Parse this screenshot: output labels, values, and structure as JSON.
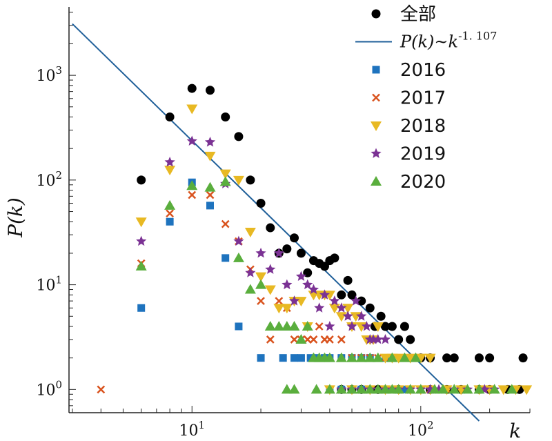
{
  "chart_data": {
    "type": "scatter",
    "xlabel": "k",
    "ylabel": "P(k)",
    "xscale": "log",
    "yscale": "log",
    "xlim": [
      2.9,
      300
    ],
    "ylim": [
      0.6,
      4500
    ],
    "grid": false,
    "legend_position": "top-right",
    "x_tick_labels": [
      {
        "value": 10,
        "base": "10",
        "exp": "1"
      },
      {
        "value": 100,
        "base": "10",
        "exp": "2"
      }
    ],
    "y_tick_labels": [
      {
        "value": 1,
        "base": "10",
        "exp": "0"
      },
      {
        "value": 10,
        "base": "10",
        "exp": "1"
      },
      {
        "value": 100,
        "base": "10",
        "exp": "2"
      },
      {
        "value": 1000,
        "base": "10",
        "exp": "3"
      }
    ],
    "fit_line": {
      "label_prefix": "P(k)~k",
      "label_exponent": "-1. 107",
      "color": "#1f5f99",
      "x": [
        3,
        180
      ],
      "y": [
        3100,
        0.5
      ]
    },
    "series": [
      {
        "name": "全部",
        "marker": "circle",
        "color": "#000000",
        "points": [
          [
            6,
            100
          ],
          [
            8,
            400
          ],
          [
            10,
            750
          ],
          [
            12,
            720
          ],
          [
            14,
            400
          ],
          [
            16,
            260
          ],
          [
            18,
            100
          ],
          [
            20,
            60
          ],
          [
            22,
            35
          ],
          [
            24,
            20
          ],
          [
            26,
            22
          ],
          [
            28,
            28
          ],
          [
            30,
            20
          ],
          [
            32,
            13
          ],
          [
            34,
            17
          ],
          [
            36,
            16
          ],
          [
            38,
            15
          ],
          [
            40,
            17
          ],
          [
            42,
            18
          ],
          [
            45,
            8
          ],
          [
            48,
            11
          ],
          [
            50,
            8
          ],
          [
            55,
            7
          ],
          [
            60,
            6
          ],
          [
            63,
            4
          ],
          [
            67,
            5
          ],
          [
            70,
            4
          ],
          [
            75,
            4
          ],
          [
            80,
            3
          ],
          [
            85,
            4
          ],
          [
            90,
            3
          ],
          [
            100,
            2
          ],
          [
            110,
            2
          ],
          [
            130,
            2
          ],
          [
            140,
            2
          ],
          [
            180,
            2
          ],
          [
            200,
            2
          ],
          [
            280,
            2
          ],
          [
            45,
            1
          ],
          [
            50,
            1
          ],
          [
            55,
            1
          ],
          [
            65,
            1
          ],
          [
            80,
            1
          ],
          [
            110,
            1
          ],
          [
            130,
            1
          ],
          [
            150,
            1
          ],
          [
            180,
            1
          ],
          [
            200,
            1
          ],
          [
            240,
            1
          ],
          [
            270,
            1
          ]
        ]
      },
      {
        "name": "2016",
        "marker": "square",
        "color": "#1e73be",
        "points": [
          [
            6,
            6
          ],
          [
            8,
            40
          ],
          [
            10,
            95
          ],
          [
            12,
            57
          ],
          [
            14,
            18
          ],
          [
            16,
            4
          ],
          [
            20,
            2
          ],
          [
            25,
            2
          ],
          [
            28,
            2
          ],
          [
            30,
            2
          ],
          [
            33,
            2
          ],
          [
            35,
            2
          ],
          [
            38,
            2
          ],
          [
            40,
            2
          ],
          [
            45,
            2
          ],
          [
            50,
            2
          ],
          [
            55,
            2
          ],
          [
            60,
            2
          ],
          [
            70,
            2
          ],
          [
            40,
            1
          ],
          [
            45,
            1
          ],
          [
            55,
            1
          ],
          [
            70,
            1
          ],
          [
            85,
            1
          ]
        ]
      },
      {
        "name": "2017",
        "marker": "x",
        "color": "#d9531e",
        "points": [
          [
            4,
            1
          ],
          [
            6,
            16
          ],
          [
            8,
            48
          ],
          [
            10,
            72
          ],
          [
            12,
            72
          ],
          [
            14,
            38
          ],
          [
            16,
            26
          ],
          [
            18,
            14
          ],
          [
            20,
            7
          ],
          [
            22,
            3
          ],
          [
            24,
            7
          ],
          [
            26,
            6
          ],
          [
            28,
            3
          ],
          [
            30,
            3
          ],
          [
            32,
            3
          ],
          [
            34,
            3
          ],
          [
            36,
            4
          ],
          [
            38,
            3
          ],
          [
            40,
            3
          ],
          [
            45,
            3
          ],
          [
            50,
            2
          ],
          [
            55,
            2
          ],
          [
            60,
            2
          ],
          [
            65,
            2
          ],
          [
            70,
            2
          ],
          [
            75,
            2
          ],
          [
            50,
            1
          ],
          [
            60,
            1
          ],
          [
            75,
            1
          ],
          [
            90,
            1
          ],
          [
            100,
            1
          ],
          [
            110,
            1
          ],
          [
            130,
            1
          ]
        ]
      },
      {
        "name": "2018",
        "marker": "triangle-down",
        "color": "#e8b923",
        "points": [
          [
            6,
            40
          ],
          [
            8,
            125
          ],
          [
            10,
            480
          ],
          [
            12,
            170
          ],
          [
            14,
            115
          ],
          [
            16,
            100
          ],
          [
            18,
            32
          ],
          [
            20,
            12
          ],
          [
            22,
            9
          ],
          [
            24,
            6
          ],
          [
            26,
            6
          ],
          [
            28,
            7
          ],
          [
            30,
            7
          ],
          [
            32,
            4
          ],
          [
            34,
            8
          ],
          [
            36,
            8
          ],
          [
            38,
            8
          ],
          [
            40,
            8
          ],
          [
            42,
            6
          ],
          [
            45,
            5
          ],
          [
            48,
            6
          ],
          [
            50,
            4
          ],
          [
            52,
            5
          ],
          [
            55,
            4
          ],
          [
            58,
            3
          ],
          [
            60,
            3
          ],
          [
            62,
            3
          ],
          [
            65,
            4
          ],
          [
            70,
            2
          ],
          [
            75,
            2
          ],
          [
            80,
            2
          ],
          [
            90,
            2
          ],
          [
            100,
            2
          ],
          [
            110,
            2
          ],
          [
            40,
            1
          ],
          [
            50,
            1
          ],
          [
            60,
            1
          ],
          [
            70,
            1
          ],
          [
            80,
            1
          ],
          [
            90,
            1
          ],
          [
            100,
            1
          ],
          [
            110,
            1
          ],
          [
            130,
            1
          ],
          [
            150,
            1
          ],
          [
            180,
            1
          ],
          [
            200,
            1
          ],
          [
            230,
            1
          ],
          [
            260,
            1
          ],
          [
            290,
            1
          ]
        ]
      },
      {
        "name": "2019",
        "marker": "star",
        "color": "#7b3294",
        "points": [
          [
            6,
            26
          ],
          [
            8,
            148
          ],
          [
            10,
            235
          ],
          [
            12,
            230
          ],
          [
            14,
            92
          ],
          [
            16,
            26
          ],
          [
            18,
            13
          ],
          [
            20,
            20
          ],
          [
            22,
            14
          ],
          [
            24,
            20
          ],
          [
            26,
            10
          ],
          [
            28,
            7
          ],
          [
            30,
            12
          ],
          [
            32,
            10
          ],
          [
            34,
            9
          ],
          [
            36,
            6
          ],
          [
            38,
            8
          ],
          [
            40,
            4
          ],
          [
            42,
            7
          ],
          [
            45,
            6
          ],
          [
            48,
            5
          ],
          [
            50,
            4
          ],
          [
            52,
            7
          ],
          [
            55,
            5
          ],
          [
            58,
            4
          ],
          [
            60,
            3
          ],
          [
            62,
            3
          ],
          [
            65,
            3
          ],
          [
            70,
            3
          ],
          [
            45,
            1
          ],
          [
            50,
            1
          ],
          [
            55,
            1
          ],
          [
            60,
            1
          ],
          [
            65,
            1
          ],
          [
            70,
            1
          ],
          [
            80,
            1
          ],
          [
            90,
            1
          ],
          [
            100,
            1
          ],
          [
            110,
            1
          ],
          [
            120,
            1
          ],
          [
            140,
            1
          ],
          [
            160,
            1
          ],
          [
            190,
            1
          ],
          [
            210,
            1
          ]
        ]
      },
      {
        "name": "2020",
        "marker": "triangle-up",
        "color": "#5aae3d",
        "points": [
          [
            6,
            15
          ],
          [
            8,
            57
          ],
          [
            10,
            88
          ],
          [
            12,
            85
          ],
          [
            14,
            96
          ],
          [
            16,
            18
          ],
          [
            18,
            9
          ],
          [
            20,
            10
          ],
          [
            22,
            4
          ],
          [
            24,
            4
          ],
          [
            26,
            4
          ],
          [
            28,
            4
          ],
          [
            30,
            3
          ],
          [
            32,
            4
          ],
          [
            34,
            2
          ],
          [
            36,
            2
          ],
          [
            38,
            2
          ],
          [
            40,
            2
          ],
          [
            45,
            2
          ],
          [
            50,
            2
          ],
          [
            55,
            2
          ],
          [
            60,
            2
          ],
          [
            65,
            2
          ],
          [
            75,
            2
          ],
          [
            85,
            2
          ],
          [
            95,
            2
          ],
          [
            26,
            1
          ],
          [
            28,
            1
          ],
          [
            35,
            1
          ],
          [
            40,
            1
          ],
          [
            45,
            1
          ],
          [
            50,
            1
          ],
          [
            55,
            1
          ],
          [
            60,
            1
          ],
          [
            65,
            1
          ],
          [
            70,
            1
          ],
          [
            75,
            1
          ],
          [
            80,
            1
          ],
          [
            90,
            1
          ],
          [
            100,
            1
          ],
          [
            115,
            1
          ],
          [
            125,
            1
          ],
          [
            140,
            1
          ],
          [
            160,
            1
          ],
          [
            180,
            1
          ],
          [
            210,
            1
          ],
          [
            250,
            1
          ]
        ]
      }
    ]
  }
}
